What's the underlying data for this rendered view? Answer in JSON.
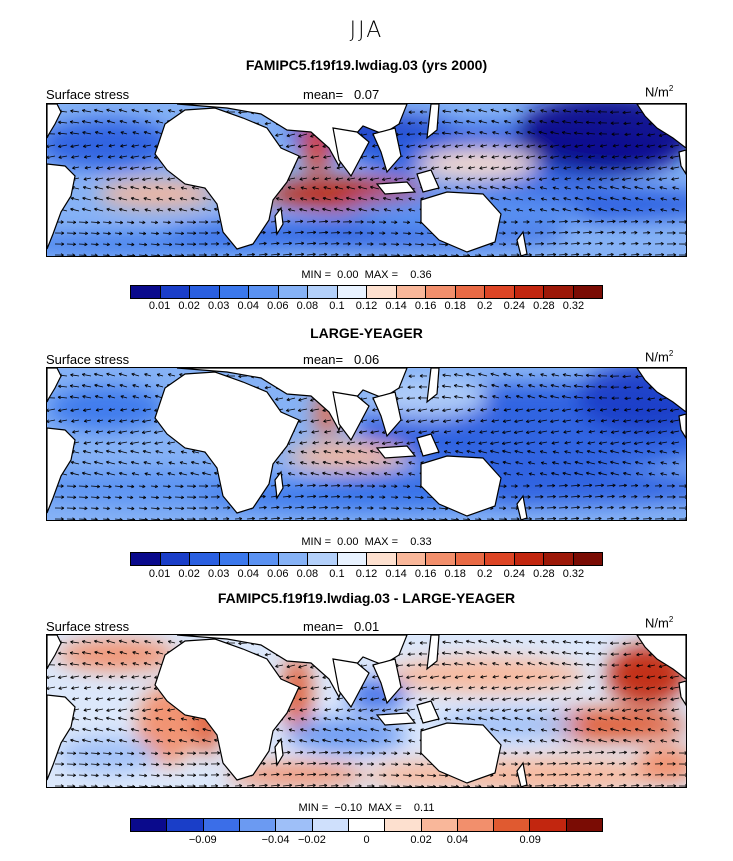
{
  "season": "JJA",
  "panels": [
    {
      "title": "FAMIPC5.f19f19.lwdiag.03 (yrs 2000)",
      "left_label": "Surface stress",
      "mean_label": "mean=",
      "mean_value": "0.07",
      "units": "N/m",
      "units_exp": "2",
      "min_label": "MIN =",
      "min_value": "0.00",
      "max_label": "MAX =",
      "max_value": "0.36",
      "tick_labels": [
        "0.01",
        "0.02",
        "0.03",
        "0.04",
        "0.06",
        "0.08",
        "0.1",
        "0.12",
        "0.14",
        "0.16",
        "0.18",
        "0.2",
        "0.24",
        "0.28",
        "0.32"
      ]
    },
    {
      "title": "LARGE-YEAGER",
      "left_label": "Surface stress",
      "mean_label": "mean=",
      "mean_value": "0.06",
      "units": "N/m",
      "units_exp": "2",
      "min_label": "MIN =",
      "min_value": "0.00",
      "max_label": "MAX =",
      "max_value": "0.33",
      "tick_labels": [
        "0.01",
        "0.02",
        "0.03",
        "0.04",
        "0.06",
        "0.08",
        "0.1",
        "0.12",
        "0.14",
        "0.16",
        "0.18",
        "0.2",
        "0.24",
        "0.28",
        "0.32"
      ]
    },
    {
      "title": "FAMIPC5.f19f19.lwdiag.03 - LARGE-YEAGER",
      "left_label": "Surface stress",
      "mean_label": "mean=",
      "mean_value": "0.01",
      "units": "N/m",
      "units_exp": "2",
      "min_label": "MIN =",
      "min_value": "−0.10",
      "max_label": "MAX =",
      "max_value": "0.11",
      "tick_labels": [
        "−0.09",
        "−0.04",
        "−0.02",
        "0",
        "0.02",
        "0.04",
        "0.09"
      ]
    }
  ],
  "colors": {
    "abs_scale": [
      "#0a0a8c",
      "#1a3ec8",
      "#2a5fe0",
      "#3b78ec",
      "#5b92f2",
      "#86b2f6",
      "#b3d0fa",
      "#e8f2ff",
      "#fde0cf",
      "#f9b79a",
      "#f28f6c",
      "#e96a45",
      "#dd4525",
      "#c2260f",
      "#9c1808",
      "#7a0c04"
    ],
    "diff_scale": [
      "#0a0a8c",
      "#1a3ec8",
      "#3b6ee8",
      "#6b9af2",
      "#9ebff8",
      "#cfe0fc",
      "#ffffff",
      "#fde0cf",
      "#f9b79a",
      "#f28f6c",
      "#e05a30",
      "#c2260f",
      "#7a0c04"
    ]
  }
}
